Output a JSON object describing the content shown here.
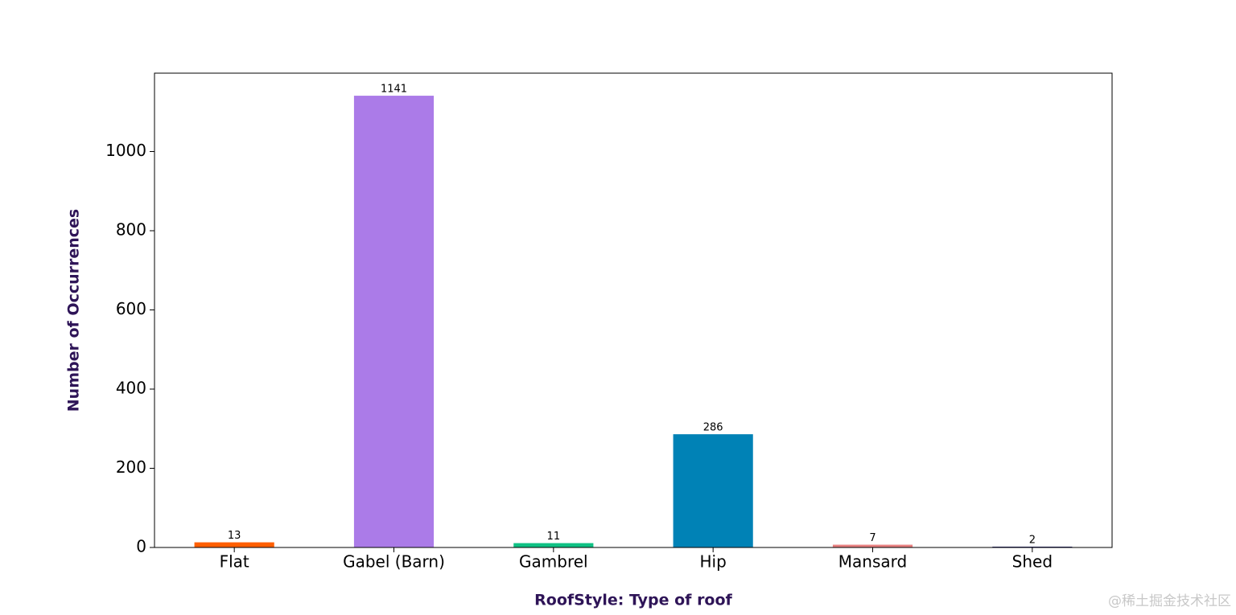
{
  "chart_data": {
    "type": "bar",
    "xlabel": "RoofStyle: Type of roof",
    "ylabel": "Number of Occurrences",
    "categories": [
      "Flat",
      "Gabel (Barn)",
      "Gambrel",
      "Hip",
      "Mansard",
      "Shed"
    ],
    "values": [
      13,
      1141,
      11,
      286,
      7,
      2
    ],
    "colors": [
      "#ff5f00",
      "#ab7be8",
      "#10c184",
      "#0082b6",
      "#e88080",
      "#1a1a6e"
    ],
    "ylim": [
      0,
      1198
    ],
    "yticks": [
      0,
      200,
      400,
      600,
      800,
      1000
    ],
    "grid": false
  },
  "watermark": "@稀土掘金技术社区"
}
